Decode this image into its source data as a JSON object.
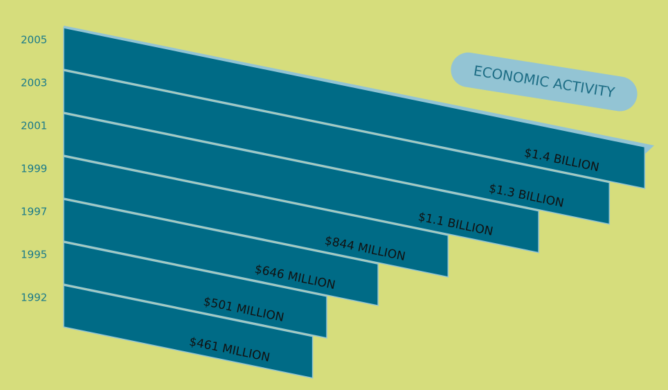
{
  "chart_data": {
    "type": "bar",
    "title": "ECONOMIC ACTIVITY",
    "categories": [
      "2005",
      "2003",
      "2001",
      "1999",
      "1997",
      "1995",
      "1992"
    ],
    "values": [
      1400,
      1300,
      1100,
      844,
      646,
      501,
      461
    ],
    "value_labels": [
      "$1.4 BILLION",
      "$1.3 BILLION",
      "$1.1 BILLION",
      "$844 MILLION",
      "$646 MILLION",
      "$501 MILLION",
      "$461 MILLION"
    ],
    "color": "#006b86"
  }
}
